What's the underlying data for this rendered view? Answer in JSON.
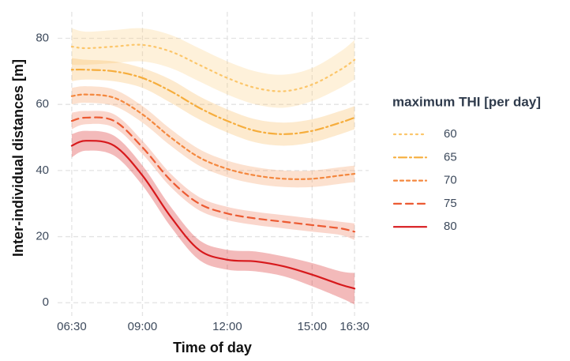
{
  "chart_data": {
    "type": "line",
    "x_label": "Time of day",
    "y_label": "Inter-individual distances [m]",
    "legend_title": "maximum THI [per day]",
    "legend_position": "right",
    "grid": true,
    "x": [
      6.5,
      7,
      8,
      9,
      10,
      11,
      12,
      13,
      14,
      15,
      16,
      16.5
    ],
    "xlim": [
      6,
      17
    ],
    "xticks": [
      {
        "value": 6.5,
        "label": "06:30"
      },
      {
        "value": 9,
        "label": "09:00"
      },
      {
        "value": 12,
        "label": "12:00"
      },
      {
        "value": 15,
        "label": "15:00"
      },
      {
        "value": 16.5,
        "label": "16:30"
      }
    ],
    "ylim": [
      -4,
      88
    ],
    "yticks": [
      0,
      20,
      40,
      60,
      80
    ],
    "series": [
      {
        "name": "60",
        "color": "#fcc66a",
        "dash": "dotted",
        "values": [
          77.5,
          77,
          77.5,
          78,
          76,
          72,
          68,
          65,
          64,
          66,
          70.5,
          73.5
        ],
        "lower": [
          72,
          72,
          72.5,
          73,
          71,
          67,
          63,
          60,
          59,
          61,
          65,
          67.5
        ],
        "upper": [
          83,
          82,
          82.5,
          83,
          81,
          77,
          73,
          70,
          69,
          71,
          76,
          79.5
        ]
      },
      {
        "name": "65",
        "color": "#f6ad3c",
        "dash": "dotdash",
        "values": [
          70.5,
          70.5,
          70,
          68,
          64,
          59,
          55,
          52,
          51,
          52,
          54.5,
          56
        ],
        "lower": [
          67,
          67.5,
          67,
          65,
          60.5,
          55.5,
          51.5,
          48.5,
          47.5,
          48.5,
          51,
          52.5
        ],
        "upper": [
          74,
          73.5,
          73,
          71,
          67.5,
          62.5,
          58.5,
          55.5,
          54.5,
          55.5,
          58,
          59.5
        ]
      },
      {
        "name": "70",
        "color": "#f4883f",
        "dash": "dashed-short",
        "values": [
          62.5,
          63,
          62,
          57,
          50,
          44,
          40.5,
          38.5,
          37.5,
          37.5,
          38.5,
          39
        ],
        "lower": [
          60,
          60.5,
          59.5,
          54.5,
          47.5,
          41.5,
          38,
          36,
          35,
          35,
          36,
          36.5
        ],
        "upper": [
          65,
          65.5,
          64.5,
          59.5,
          52.5,
          46.5,
          43,
          41,
          40,
          40,
          41,
          41.5
        ]
      },
      {
        "name": "75",
        "color": "#ec5a32",
        "dash": "dashed",
        "values": [
          55,
          56,
          55,
          47,
          37,
          30,
          27,
          25.5,
          24.5,
          23.5,
          22.5,
          21.5
        ],
        "lower": [
          52.5,
          54,
          53,
          45,
          35,
          28,
          25,
          23.5,
          22.5,
          21.5,
          20.5,
          19
        ],
        "upper": [
          57.5,
          58,
          57,
          49,
          39,
          32,
          29,
          27.5,
          26.5,
          25.5,
          24.5,
          24
        ]
      },
      {
        "name": "80",
        "color": "#d7191c",
        "dash": "solid",
        "values": [
          47.5,
          49,
          47.5,
          38.5,
          26,
          16,
          13,
          12.5,
          11,
          8.5,
          5.5,
          4.3
        ],
        "lower": [
          44,
          46,
          44.5,
          35.5,
          23,
          13,
          10,
          9.5,
          8,
          5,
          1.5,
          -0.5
        ],
        "upper": [
          51,
          52,
          50.5,
          41.5,
          29,
          19,
          16,
          15.5,
          14,
          12,
          9.5,
          9
        ]
      }
    ]
  }
}
